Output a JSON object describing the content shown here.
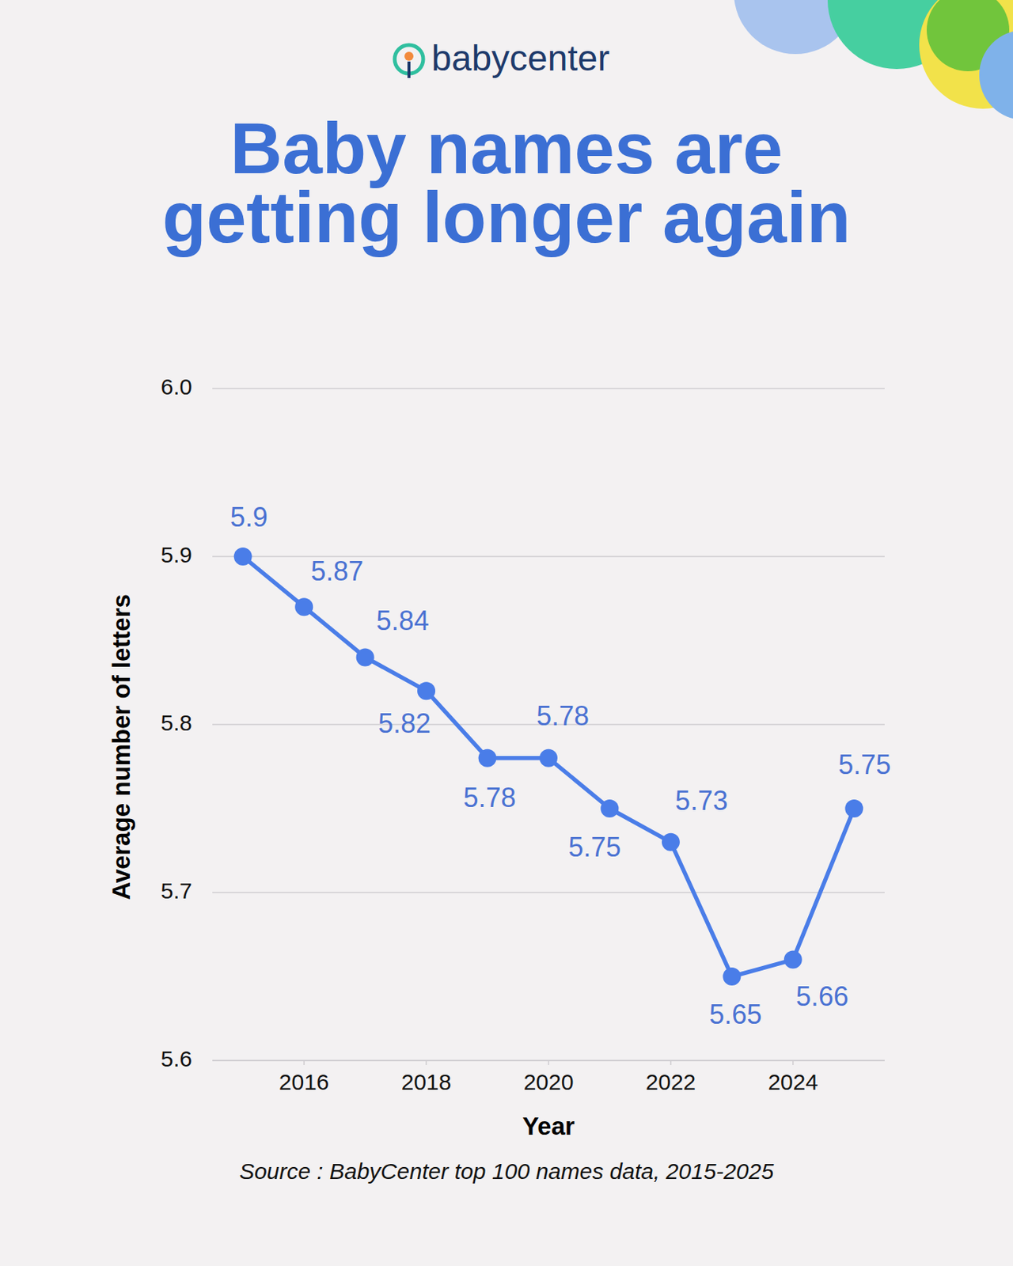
{
  "brand": "babycenter",
  "source": "Source : BabyCenter top 100 names data, 2015-2025",
  "chart_data": {
    "type": "line",
    "title": "Baby names are getting longer again",
    "x_label": "Year",
    "y_label": "Average number of letters",
    "x": [
      2015,
      2016,
      2017,
      2018,
      2019,
      2020,
      2021,
      2022,
      2023,
      2024,
      2025
    ],
    "values": [
      5.9,
      5.87,
      5.84,
      5.82,
      5.78,
      5.78,
      5.75,
      5.73,
      5.65,
      5.66,
      5.75
    ],
    "color": "#4a7de8",
    "marker": "circle",
    "line_style": "solid",
    "xlim": [
      2014.5,
      2025.5
    ],
    "xticks": [
      2016,
      2018,
      2020,
      2022,
      2024
    ],
    "ylim": [
      5.6,
      6.0
    ],
    "yticks": [
      5.6,
      5.7,
      5.8,
      5.9,
      {
        "value": 6,
        "label": "6.0"
      }
    ],
    "grid": true,
    "data_labels": true
  }
}
